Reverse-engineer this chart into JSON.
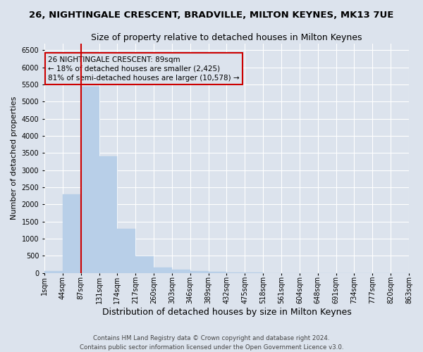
{
  "title": "26, NIGHTINGALE CRESCENT, BRADVILLE, MILTON KEYNES, MK13 7UE",
  "subtitle": "Size of property relative to detached houses in Milton Keynes",
  "xlabel": "Distribution of detached houses by size in Milton Keynes",
  "ylabel": "Number of detached properties",
  "bar_values": [
    60,
    2300,
    5450,
    3400,
    1300,
    480,
    160,
    90,
    60,
    40,
    20,
    10,
    5,
    3,
    2,
    1,
    1,
    0,
    0,
    0
  ],
  "categories": [
    "1sqm",
    "44sqm",
    "87sqm",
    "131sqm",
    "174sqm",
    "217sqm",
    "260sqm",
    "303sqm",
    "346sqm",
    "389sqm",
    "432sqm",
    "475sqm",
    "518sqm",
    "561sqm",
    "604sqm",
    "648sqm",
    "691sqm",
    "734sqm",
    "777sqm",
    "820sqm",
    "863sqm"
  ],
  "bar_color": "#b8cfe8",
  "bar_edgecolor": "#b8cfe8",
  "background_color": "#dce3ed",
  "grid_color": "#ffffff",
  "ylim": [
    0,
    6700
  ],
  "yticks": [
    0,
    500,
    1000,
    1500,
    2000,
    2500,
    3000,
    3500,
    4000,
    4500,
    5000,
    5500,
    6000,
    6500
  ],
  "vline_color": "#cc0000",
  "annotation_text": "26 NIGHTINGALE CRESCENT: 89sqm\n← 18% of detached houses are smaller (2,425)\n81% of semi-detached houses are larger (10,578) →",
  "footer_text": "Contains HM Land Registry data © Crown copyright and database right 2024.\nContains public sector information licensed under the Open Government Licence v3.0.",
  "title_fontsize": 9.5,
  "subtitle_fontsize": 9,
  "tick_fontsize": 7,
  "ylabel_fontsize": 8,
  "xlabel_fontsize": 9,
  "annotation_fontsize": 7.5
}
